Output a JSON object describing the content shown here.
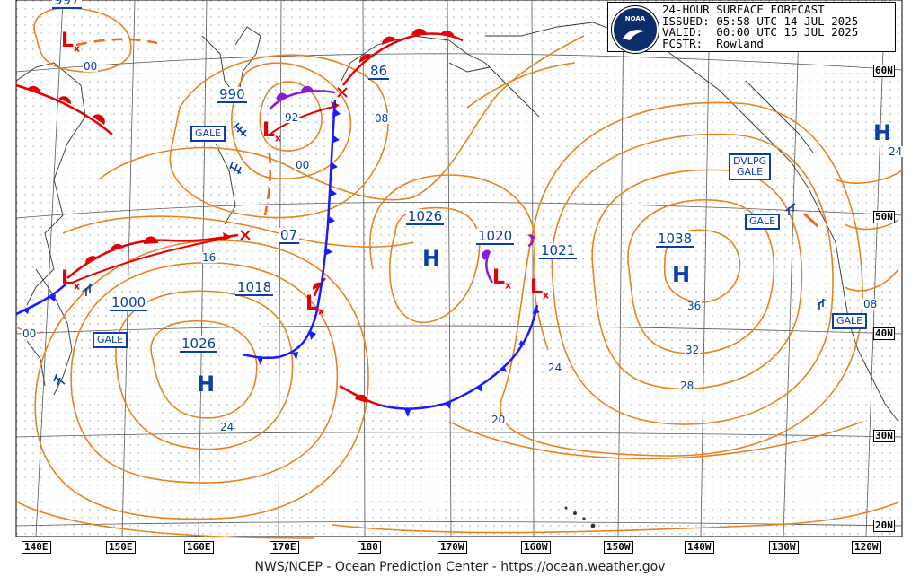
{
  "header": {
    "line1": "24-HOUR SURFACE FORECAST",
    "line2": "ISSUED: 05:58 UTC 14 JUL 2025",
    "line3": "VALID:  00:00 UTC 15 JUL 2025",
    "line4": "FCSTR:  Rowland",
    "logo_text": "NOAA"
  },
  "footer": "NWS/NCEP - Ocean Prediction Center - https://ocean.weather.gov",
  "lat_labels": [
    "60N",
    "50N",
    "40N",
    "30N",
    "20N"
  ],
  "lon_labels": [
    "140E",
    "150E",
    "160E",
    "170E",
    "180",
    "170W",
    "160W",
    "150W",
    "140W",
    "130W",
    "120W"
  ],
  "pressure_centers": {
    "high_1026_west": "1026",
    "high_1026_central": "1026",
    "high_1038": "1038",
    "low_990": "990",
    "low_86": "86",
    "low_07": "07",
    "low_1018": "1018",
    "low_1000": "1000",
    "low_1020": "1020",
    "low_1021": "1021",
    "top_left_partial": "997"
  },
  "isobar_labels": [
    "00",
    "92",
    "00",
    "08",
    "16",
    "24",
    "36",
    "32",
    "28",
    "24",
    "20",
    "24",
    "08",
    "00"
  ],
  "warnings": {
    "gale_1": "GALE",
    "gale_2": "GALE",
    "gale_3": "GALE",
    "gale_4": "GALE",
    "dvlpg_gale_line1": "DVLPG",
    "dvlpg_gale_line2": "GALE"
  },
  "symbols": {
    "high": "H",
    "low": "L",
    "low_sub": "x"
  },
  "colors": {
    "isobar": "#e8821e",
    "cold_front": "#1a1aff",
    "warm_front": "#e60000",
    "occluded_front": "#8a1ad6",
    "label_blue": "#0a3fa8",
    "coast": "#333333",
    "grid": "#555555"
  }
}
